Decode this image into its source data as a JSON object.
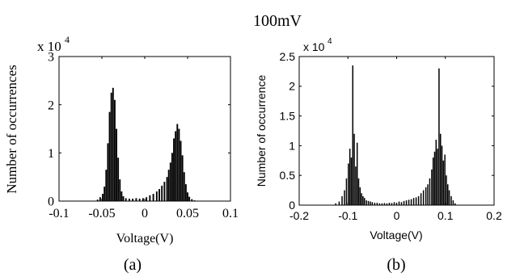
{
  "figure": {
    "title": "100mV",
    "caption_a": "(a)",
    "caption_b": "(b)"
  },
  "chart_data": [
    {
      "id": "a",
      "type": "bar",
      "xlabel": "Voltage(V)",
      "ylabel": "Number of occurrences",
      "multiplier": "x 10",
      "multiplier_exp": "4",
      "xlim": [
        -0.1,
        0.1
      ],
      "ylim": [
        0,
        30000
      ],
      "xticks": [
        -0.1,
        -0.05,
        0,
        0.05,
        0.1
      ],
      "xtick_labels": [
        "-0.1",
        "-0.05",
        "0",
        "0.05",
        "0.1"
      ],
      "yticks": [
        0,
        10000,
        20000,
        30000
      ],
      "ytick_labels": [
        "0",
        "1",
        "2",
        "3"
      ],
      "bins": {
        "x": [
          -0.055,
          -0.052,
          -0.049,
          -0.047,
          -0.045,
          -0.043,
          -0.041,
          -0.039,
          -0.037,
          -0.035,
          -0.033,
          -0.031,
          -0.029,
          -0.027,
          -0.025,
          -0.022,
          -0.018,
          -0.014,
          -0.01,
          -0.006,
          -0.002,
          0.002,
          0.006,
          0.01,
          0.014,
          0.017,
          0.02,
          0.023,
          0.026,
          0.028,
          0.03,
          0.032,
          0.034,
          0.036,
          0.038,
          0.04,
          0.042,
          0.044,
          0.046,
          0.048,
          0.05,
          0.052,
          0.055,
          0.058
        ],
        "values": [
          300,
          800,
          1500,
          3000,
          6500,
          12000,
          18500,
          22500,
          23500,
          21000,
          15000,
          9000,
          4500,
          2000,
          1000,
          600,
          500,
          500,
          600,
          500,
          600,
          800,
          1200,
          1500,
          2000,
          2500,
          3200,
          4000,
          5000,
          6500,
          8000,
          10000,
          13000,
          14500,
          16000,
          15000,
          12500,
          9500,
          6000,
          3500,
          1800,
          900,
          400,
          150
        ]
      }
    },
    {
      "id": "b",
      "type": "bar",
      "xlabel": "Voltage(V)",
      "ylabel": "Number of occurrence",
      "multiplier": "x 10",
      "multiplier_exp": "4",
      "xlim": [
        -0.2,
        0.2
      ],
      "ylim": [
        0,
        25000
      ],
      "xticks": [
        -0.2,
        -0.1,
        0,
        0.1,
        0.2
      ],
      "xtick_labels": [
        "-0.2",
        "-0.1",
        "0",
        "0.1",
        "0.2"
      ],
      "yticks": [
        0,
        5000,
        10000,
        15000,
        20000,
        25000
      ],
      "ytick_labels": [
        "0",
        "0.5",
        "1",
        "1.5",
        "2",
        "2.5"
      ],
      "bins": {
        "x": [
          -0.125,
          -0.118,
          -0.112,
          -0.107,
          -0.103,
          -0.099,
          -0.096,
          -0.093,
          -0.09,
          -0.087,
          -0.084,
          -0.081,
          -0.078,
          -0.075,
          -0.072,
          -0.069,
          -0.066,
          -0.062,
          -0.058,
          -0.054,
          -0.05,
          -0.045,
          -0.04,
          -0.035,
          -0.03,
          -0.025,
          -0.02,
          -0.015,
          -0.01,
          -0.005,
          0.0,
          0.005,
          0.01,
          0.015,
          0.02,
          0.025,
          0.03,
          0.035,
          0.04,
          0.045,
          0.05,
          0.055,
          0.06,
          0.064,
          0.068,
          0.072,
          0.075,
          0.078,
          0.081,
          0.084,
          0.087,
          0.09,
          0.093,
          0.096,
          0.099,
          0.102,
          0.105,
          0.108,
          0.112,
          0.116,
          0.12
        ],
        "values": [
          300,
          600,
          1500,
          2500,
          4500,
          7000,
          9500,
          8000,
          23500,
          12000,
          6500,
          10500,
          4500,
          3000,
          2000,
          1500,
          1200,
          800,
          700,
          600,
          500,
          400,
          400,
          300,
          300,
          350,
          300,
          400,
          350,
          500,
          400,
          600,
          500,
          700,
          800,
          900,
          1000,
          1200,
          1300,
          1500,
          2000,
          2500,
          3000,
          3500,
          4500,
          6000,
          8000,
          9000,
          11000,
          9500,
          23000,
          12000,
          10000,
          7500,
          8500,
          5000,
          3500,
          2500,
          1500,
          800,
          300
        ]
      }
    }
  ]
}
